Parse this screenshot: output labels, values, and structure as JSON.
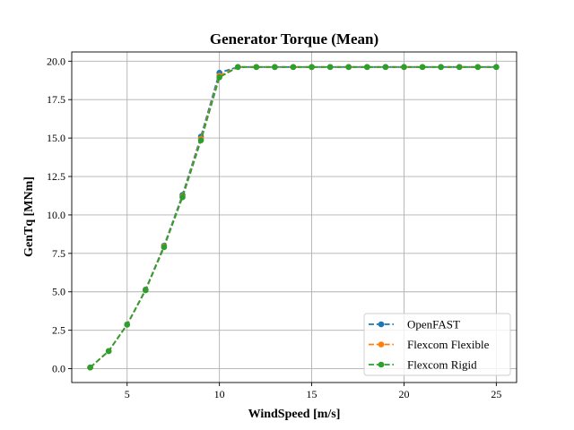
{
  "chart_data": {
    "type": "line",
    "title": "Generator Torque (Mean)",
    "xlabel": "WindSpeed [m/s]",
    "ylabel": "GenTq [MNm]",
    "xlim": [
      2.0,
      26.1
    ],
    "ylim": [
      -0.9,
      20.6
    ],
    "xticks": [
      5,
      10,
      15,
      20,
      25
    ],
    "xtick_labels": [
      "5",
      "10",
      "15",
      "20",
      "25"
    ],
    "yticks": [
      0.0,
      2.5,
      5.0,
      7.5,
      10.0,
      12.5,
      15.0,
      17.5,
      20.0
    ],
    "ytick_labels": [
      "0.0",
      "2.5",
      "5.0",
      "7.5",
      "10.0",
      "12.5",
      "15.0",
      "17.5",
      "20.0"
    ],
    "grid": true,
    "legend_position": "bottom-right",
    "x": [
      3,
      4,
      5,
      6,
      7,
      8,
      9,
      10,
      11,
      12,
      13,
      14,
      15,
      16,
      17,
      18,
      19,
      20,
      21,
      22,
      23,
      24,
      25
    ],
    "series": [
      {
        "name": "OpenFAST",
        "color": "#1f77b4",
        "values": [
          0.08,
          1.15,
          2.88,
          5.15,
          8.0,
          11.3,
          15.1,
          19.25,
          19.62,
          19.62,
          19.62,
          19.62,
          19.62,
          19.62,
          19.62,
          19.62,
          19.62,
          19.62,
          19.62,
          19.62,
          19.62,
          19.62,
          19.62
        ]
      },
      {
        "name": "Flexcom Flexible",
        "color": "#ff7f0e",
        "values": [
          0.08,
          1.15,
          2.87,
          5.12,
          7.95,
          11.2,
          14.95,
          19.05,
          19.62,
          19.62,
          19.62,
          19.62,
          19.62,
          19.62,
          19.62,
          19.62,
          19.62,
          19.62,
          19.62,
          19.62,
          19.62,
          19.62,
          19.62
        ]
      },
      {
        "name": "Flexcom Rigid",
        "color": "#2ca02c",
        "values": [
          0.08,
          1.14,
          2.86,
          5.1,
          7.9,
          11.15,
          14.85,
          18.95,
          19.62,
          19.62,
          19.62,
          19.62,
          19.62,
          19.62,
          19.62,
          19.62,
          19.62,
          19.62,
          19.62,
          19.62,
          19.62,
          19.62,
          19.62
        ]
      }
    ]
  }
}
